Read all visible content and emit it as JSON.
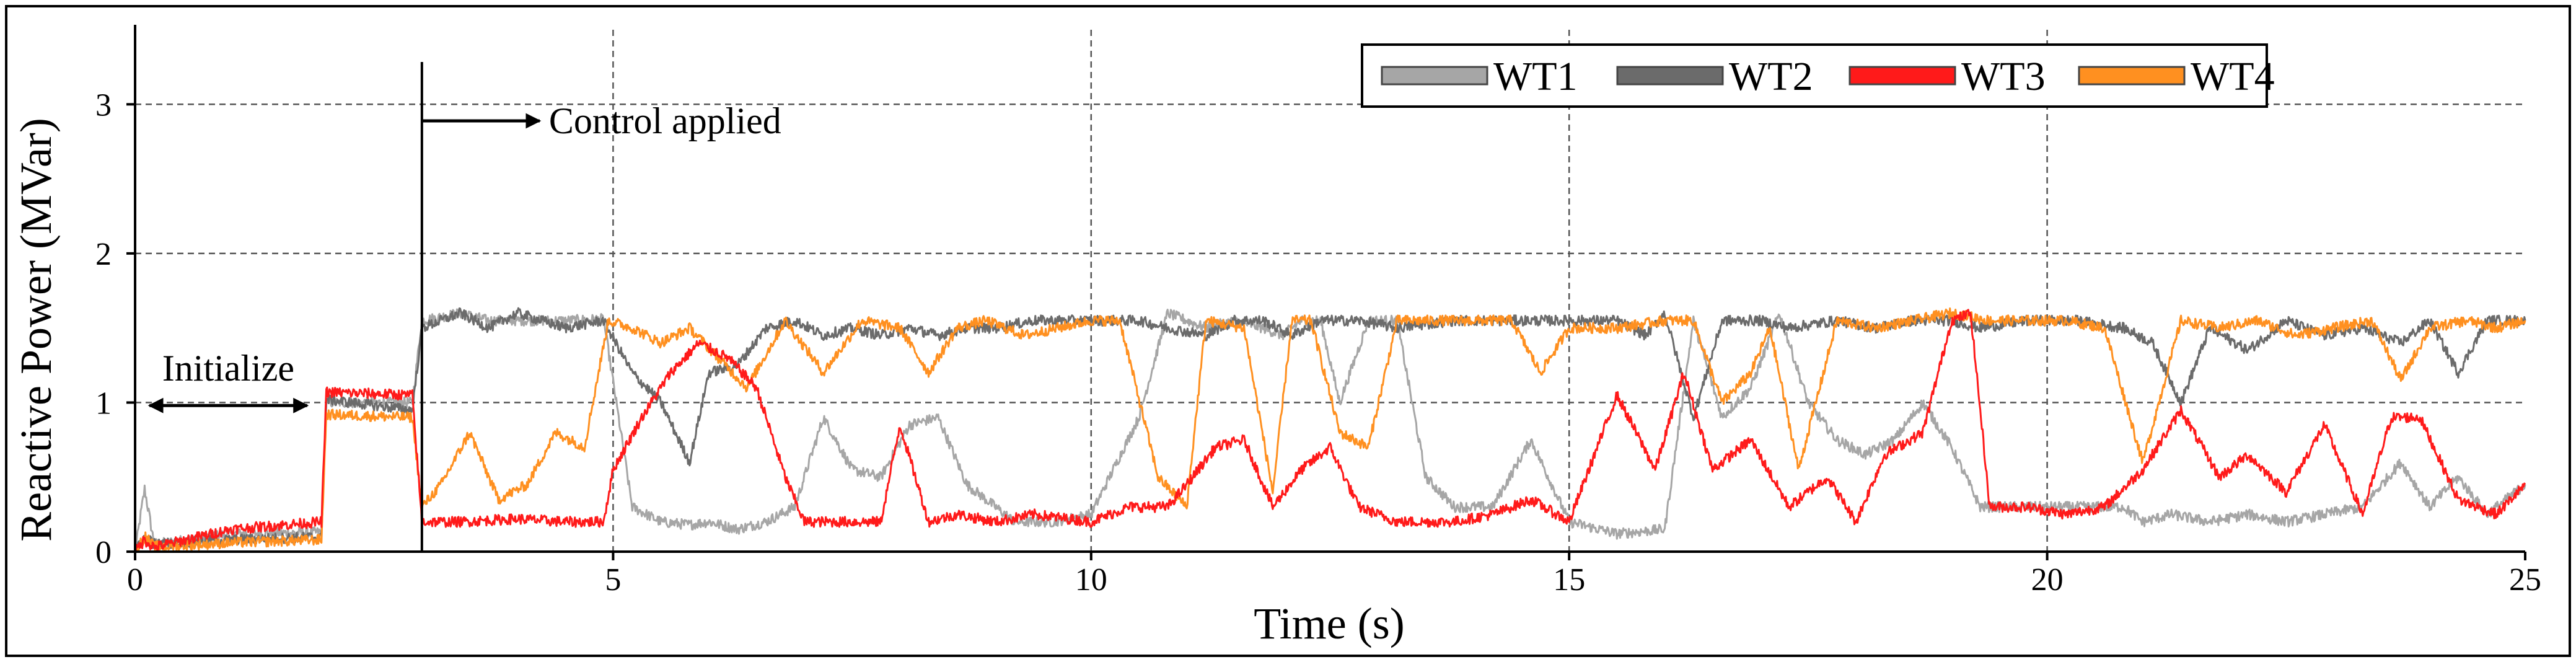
{
  "chart_data": {
    "type": "line",
    "title": "",
    "xlabel": "Time (s)",
    "ylabel": "Reactive Power (MVar)",
    "xlim": [
      0,
      25
    ],
    "ylim": [
      0,
      3.5
    ],
    "xticks": [
      0,
      5,
      10,
      15,
      20,
      25
    ],
    "yticks": [
      0,
      1,
      2,
      3
    ],
    "grid": "dashed",
    "legend_position": "top-right",
    "colors": {
      "WT1": "#a6a6a6",
      "WT2": "#6b6b6b",
      "WT3": "#ff1a1a",
      "WT4": "#ff9020"
    },
    "series": [
      {
        "name": "WT1",
        "x": [
          0,
          0.1,
          0.2,
          1.0,
          1.95,
          2.0,
          2.9,
          3.0,
          3.4,
          3.7,
          4.0,
          4.5,
          4.9,
          5.2,
          5.5,
          5.8,
          6.0,
          6.3,
          6.6,
          6.9,
          7.2,
          7.5,
          7.8,
          8.1,
          8.4,
          8.7,
          9.0,
          9.2,
          9.6,
          10.0,
          10.5,
          10.8,
          11.2,
          11.5,
          11.8,
          12.0,
          12.2,
          12.4,
          12.6,
          12.9,
          13.2,
          13.5,
          13.8,
          14.2,
          14.6,
          15.0,
          15.5,
          16.0,
          16.3,
          16.6,
          16.9,
          17.2,
          17.5,
          17.8,
          18.1,
          18.4,
          18.7,
          19.0,
          19.3,
          19.8,
          20.3,
          20.8,
          21.0,
          21.3,
          21.7,
          22.1,
          22.5,
          22.9,
          23.3,
          23.7,
          24.0,
          24.3,
          24.6,
          25.0
        ],
        "values": [
          0.0,
          0.42,
          0.05,
          0.12,
          0.13,
          1.0,
          1.0,
          1.55,
          1.6,
          1.55,
          1.55,
          1.55,
          1.56,
          0.3,
          0.2,
          0.18,
          0.2,
          0.15,
          0.2,
          0.3,
          0.9,
          0.55,
          0.5,
          0.85,
          0.9,
          0.45,
          0.3,
          0.2,
          0.2,
          0.25,
          0.9,
          1.6,
          1.5,
          1.55,
          1.5,
          1.45,
          1.55,
          1.55,
          1.0,
          1.55,
          1.55,
          0.5,
          0.3,
          0.3,
          0.75,
          0.2,
          0.12,
          0.15,
          1.55,
          0.9,
          1.1,
          1.6,
          1.0,
          0.75,
          0.65,
          0.75,
          1.0,
          0.7,
          0.3,
          0.3,
          0.3,
          0.3,
          0.2,
          0.25,
          0.2,
          0.25,
          0.2,
          0.25,
          0.3,
          0.6,
          0.3,
          0.5,
          0.25,
          0.45
        ]
      },
      {
        "name": "WT2",
        "x": [
          0,
          0.1,
          0.2,
          1.0,
          1.95,
          2.0,
          2.9,
          3.0,
          3.4,
          3.7,
          4.0,
          4.5,
          4.9,
          5.2,
          5.5,
          5.8,
          6.0,
          6.3,
          6.6,
          6.9,
          7.2,
          7.5,
          7.8,
          8.1,
          8.4,
          8.7,
          9.0,
          9.4,
          10.0,
          10.5,
          10.8,
          11.2,
          11.5,
          11.8,
          12.1,
          12.4,
          12.8,
          13.2,
          13.8,
          14.5,
          15.0,
          15.5,
          15.8,
          16.0,
          16.3,
          16.6,
          17.0,
          17.3,
          17.8,
          18.2,
          18.6,
          19.0,
          19.3,
          19.8,
          20.3,
          20.8,
          21.1,
          21.4,
          21.7,
          22.1,
          22.5,
          22.9,
          23.3,
          23.7,
          24.0,
          24.3,
          24.6,
          25.0
        ],
        "values": [
          0.0,
          0.1,
          0.05,
          0.08,
          0.1,
          1.02,
          0.95,
          1.5,
          1.6,
          1.5,
          1.6,
          1.5,
          1.55,
          1.2,
          1.0,
          0.6,
          1.2,
          1.25,
          1.5,
          1.55,
          1.45,
          1.5,
          1.45,
          1.5,
          1.45,
          1.5,
          1.5,
          1.55,
          1.55,
          1.55,
          1.5,
          1.45,
          1.55,
          1.55,
          1.45,
          1.55,
          1.55,
          1.5,
          1.55,
          1.55,
          1.55,
          1.55,
          1.45,
          1.6,
          0.9,
          1.55,
          1.55,
          1.5,
          1.55,
          1.5,
          1.55,
          1.55,
          1.5,
          1.55,
          1.55,
          1.5,
          1.4,
          1.0,
          1.5,
          1.35,
          1.55,
          1.45,
          1.5,
          1.4,
          1.55,
          1.2,
          1.55,
          1.55
        ]
      },
      {
        "name": "WT3",
        "x": [
          0,
          0.1,
          0.2,
          1.0,
          1.95,
          2.0,
          2.9,
          3.0,
          3.4,
          4.0,
          4.5,
          4.9,
          5.0,
          5.3,
          5.6,
          5.9,
          6.2,
          6.5,
          6.8,
          7.0,
          7.4,
          7.8,
          8.0,
          8.3,
          8.6,
          9.0,
          9.4,
          10.0,
          10.4,
          10.8,
          11.0,
          11.3,
          11.6,
          11.9,
          12.2,
          12.5,
          12.8,
          13.2,
          13.8,
          14.2,
          14.6,
          15.0,
          15.5,
          15.9,
          16.2,
          16.5,
          16.9,
          17.3,
          17.7,
          18.0,
          18.3,
          18.7,
          19.0,
          19.2,
          19.4,
          19.8,
          20.2,
          20.6,
          21.0,
          21.4,
          21.8,
          22.1,
          22.5,
          22.9,
          23.3,
          23.6,
          23.9,
          24.3,
          24.7,
          25.0
        ],
        "values": [
          0.0,
          0.08,
          0.03,
          0.15,
          0.2,
          1.07,
          1.05,
          0.2,
          0.2,
          0.22,
          0.2,
          0.2,
          0.55,
          0.9,
          1.2,
          1.4,
          1.3,
          1.1,
          0.5,
          0.2,
          0.2,
          0.2,
          0.85,
          0.2,
          0.25,
          0.2,
          0.25,
          0.2,
          0.3,
          0.3,
          0.45,
          0.7,
          0.75,
          0.3,
          0.55,
          0.7,
          0.3,
          0.2,
          0.2,
          0.25,
          0.35,
          0.2,
          1.05,
          0.55,
          1.2,
          0.55,
          0.75,
          0.3,
          0.5,
          0.2,
          0.65,
          0.8,
          1.55,
          1.6,
          0.3,
          0.3,
          0.25,
          0.3,
          0.55,
          0.95,
          0.5,
          0.65,
          0.4,
          0.85,
          0.25,
          0.9,
          0.9,
          0.35,
          0.25,
          0.45
        ]
      },
      {
        "name": "WT4",
        "x": [
          0,
          0.1,
          0.2,
          1.0,
          1.95,
          2.0,
          2.9,
          3.0,
          3.2,
          3.5,
          3.8,
          4.1,
          4.4,
          4.7,
          4.95,
          5.2,
          5.5,
          5.8,
          6.1,
          6.4,
          6.8,
          7.2,
          7.6,
          8.0,
          8.3,
          8.6,
          8.9,
          9.3,
          10.0,
          10.3,
          10.7,
          11.0,
          11.2,
          11.6,
          11.9,
          12.1,
          12.3,
          12.6,
          12.9,
          13.2,
          13.6,
          14.0,
          14.4,
          14.7,
          15.0,
          15.5,
          16.0,
          16.3,
          16.6,
          16.9,
          17.1,
          17.4,
          17.8,
          18.2,
          18.6,
          19.0,
          19.4,
          19.8,
          20.2,
          20.6,
          21.0,
          21.4,
          21.8,
          22.2,
          22.6,
          23.0,
          23.4,
          23.7,
          24.0,
          24.4,
          24.7,
          25.0
        ],
        "values": [
          0.0,
          0.1,
          0.03,
          0.06,
          0.08,
          0.92,
          0.9,
          0.3,
          0.45,
          0.8,
          0.35,
          0.45,
          0.8,
          0.7,
          1.55,
          1.5,
          1.4,
          1.5,
          1.3,
          1.1,
          1.55,
          1.2,
          1.55,
          1.5,
          1.2,
          1.5,
          1.55,
          1.45,
          1.55,
          1.55,
          0.5,
          0.3,
          1.55,
          1.5,
          0.4,
          1.55,
          1.55,
          0.8,
          0.7,
          1.55,
          1.55,
          1.55,
          1.55,
          1.2,
          1.5,
          1.5,
          1.55,
          1.55,
          1.0,
          1.2,
          1.5,
          0.55,
          1.55,
          1.5,
          1.55,
          1.6,
          1.55,
          1.55,
          1.55,
          1.5,
          0.6,
          1.55,
          1.5,
          1.55,
          1.45,
          1.5,
          1.55,
          1.15,
          1.5,
          1.55,
          1.5,
          1.55
        ]
      }
    ],
    "annotations": [
      {
        "text": "Initialize",
        "x_from": 0.15,
        "x_to": 1.8,
        "y": 0.98
      },
      {
        "text": "Control applied",
        "x": 3.0,
        "y": 3.0
      }
    ]
  }
}
